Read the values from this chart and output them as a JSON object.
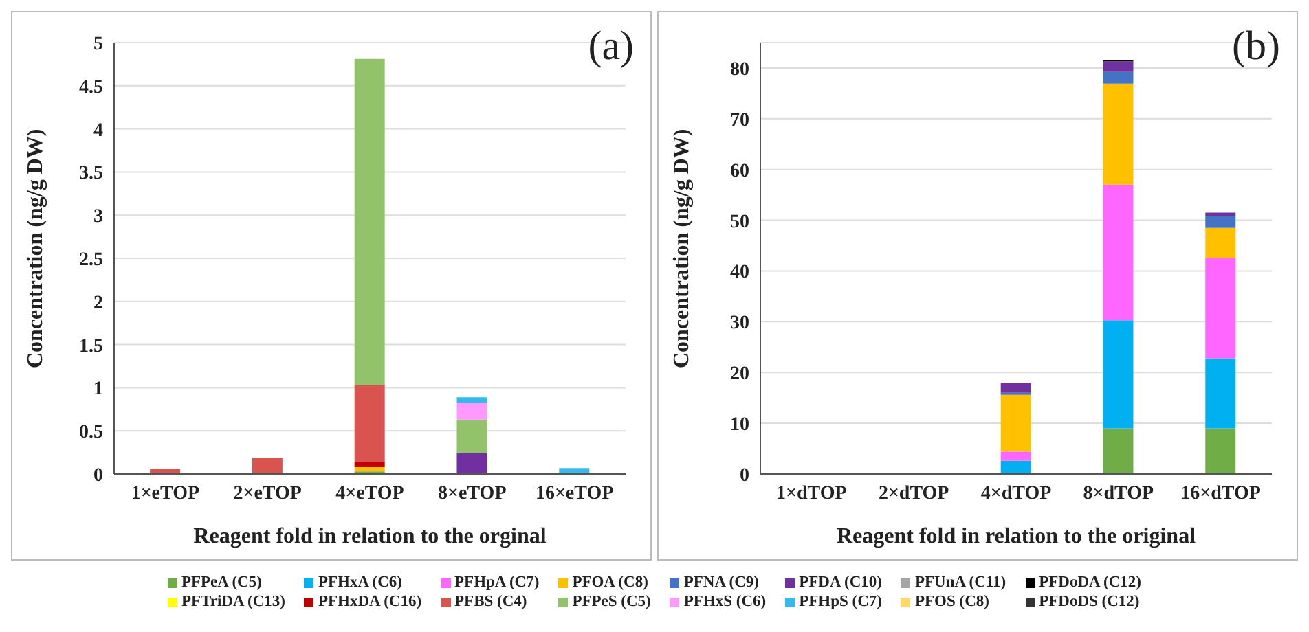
{
  "chart_data": [
    {
      "type": "bar",
      "stacked": true,
      "annotations": [
        "(a)"
      ],
      "xlabel": "Reagent fold in relation to the orginal",
      "ylabel": "Concentration (ng/g DW)",
      "categories": [
        "1×eTOP",
        "2×eTOP",
        "4×eTOP",
        "8×eTOP",
        "16×eTOP"
      ],
      "ylim": [
        0,
        5
      ],
      "yticks": [
        0,
        0.5,
        1,
        1.5,
        2,
        2.5,
        3,
        3.5,
        4,
        4.5,
        5
      ],
      "grid": "y",
      "legend": "bottom",
      "series": [
        {
          "name": "PFPeA (C5)",
          "color": "#70ad47",
          "values": [
            null,
            null,
            0.03,
            null,
            null
          ]
        },
        {
          "name": "PFHxA (C6)",
          "color": "#00b0f0",
          "values": [
            null,
            null,
            null,
            null,
            null
          ]
        },
        {
          "name": "PFHpA (C7)",
          "color": "#ff66ff",
          "values": [
            null,
            null,
            null,
            null,
            null
          ]
        },
        {
          "name": "PFOA (C8)",
          "color": "#ffc000",
          "values": [
            null,
            null,
            0.05,
            null,
            null
          ]
        },
        {
          "name": "PFNA (C9)",
          "color": "#4472c4",
          "values": [
            null,
            null,
            null,
            null,
            null
          ]
        },
        {
          "name": "PFDA (C10)",
          "color": "#7030a0",
          "values": [
            null,
            null,
            null,
            0.24,
            null
          ]
        },
        {
          "name": "PFUnA (C11)",
          "color": "#a5a5a5",
          "values": [
            null,
            null,
            null,
            null,
            null
          ]
        },
        {
          "name": "PFDoDA (C12)",
          "color": "#000000",
          "values": [
            null,
            null,
            null,
            null,
            null
          ]
        },
        {
          "name": "PFTriDA (C13)",
          "color": "#ffff00",
          "values": [
            null,
            null,
            null,
            null,
            null
          ]
        },
        {
          "name": "PFHxDA (C16)",
          "color": "#c00000",
          "values": [
            null,
            null,
            0.06,
            null,
            null
          ]
        },
        {
          "name": "PFBS (C4)",
          "color": "#d9534f",
          "values": [
            0.06,
            0.19,
            0.89,
            null,
            null
          ]
        },
        {
          "name": "PFPeS (C5)",
          "color": "#92c36b",
          "values": [
            null,
            null,
            3.78,
            0.39,
            null
          ]
        },
        {
          "name": "PFHxS (C6)",
          "color": "#ff99ff",
          "values": [
            null,
            null,
            null,
            0.19,
            null
          ]
        },
        {
          "name": "PFHpS (C7)",
          "color": "#33bbee",
          "values": [
            null,
            null,
            null,
            0.07,
            0.07
          ]
        },
        {
          "name": "PFOS (C8)",
          "color": "#ffd966",
          "values": [
            null,
            null,
            null,
            null,
            null
          ]
        },
        {
          "name": "PFDoDS (C12)",
          "color": "#333333",
          "values": [
            null,
            null,
            null,
            null,
            null
          ]
        }
      ]
    },
    {
      "type": "bar",
      "stacked": true,
      "annotations": [
        "(b)"
      ],
      "xlabel": "Reagent fold in relation to the original",
      "ylabel": "Concentration (ng/g DW)",
      "categories": [
        "1×dTOP",
        "2×dTOP",
        "4×dTOP",
        "8×dTOP",
        "16×dTOP"
      ],
      "ylim": [
        0,
        85
      ],
      "yticks": [
        0,
        10,
        20,
        30,
        40,
        50,
        60,
        70,
        80
      ],
      "grid": "y",
      "series": [
        {
          "color": "#70ad47",
          "values": [
            null,
            null,
            null,
            9,
            9
          ]
        },
        {
          "color": "#00b0f0",
          "values": [
            null,
            null,
            2.6,
            21.3,
            13.8
          ]
        },
        {
          "color": "#ff66ff",
          "values": [
            null,
            null,
            1.8,
            26.7,
            19.8
          ]
        },
        {
          "color": "#ffc000",
          "values": [
            null,
            null,
            11.2,
            19.9,
            5.9
          ]
        },
        {
          "color": "#4472c4",
          "values": [
            null,
            null,
            0.4,
            2.3,
            2.4
          ]
        },
        {
          "color": "#7030a0",
          "values": [
            null,
            null,
            1.9,
            2.1,
            0.6
          ]
        },
        {
          "color": "#000000",
          "values": [
            null,
            null,
            null,
            0.3,
            null
          ]
        }
      ]
    }
  ]
}
